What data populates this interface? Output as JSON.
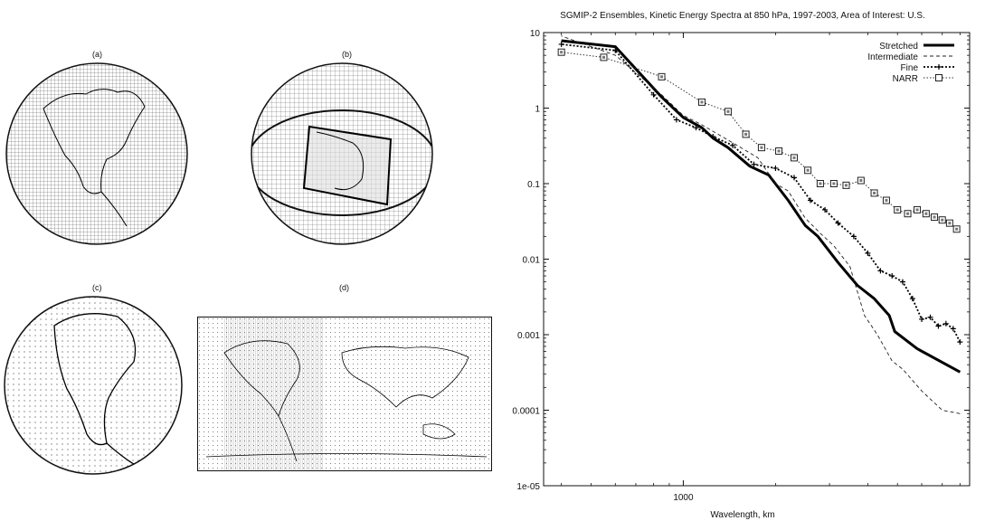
{
  "panels": {
    "a": {
      "label": "(a)"
    },
    "b": {
      "label": "(b)"
    },
    "c": {
      "label": "(c)"
    },
    "d": {
      "label": "(d)"
    }
  },
  "chart_data": {
    "type": "line",
    "title": "SGMIP-2 Ensembles, Kinetic Energy Spectra at 850 hPa, 1997-2003, Area of Interest: U.S.",
    "xlabel": "Wavelength, km",
    "ylabel": "",
    "x_scale": "log",
    "y_scale": "log",
    "x_tick_labels": [
      {
        "value": 1000,
        "label": "1000"
      }
    ],
    "y_tick_labels": [
      {
        "value": 10,
        "label": "10"
      },
      {
        "value": 1,
        "label": "1"
      },
      {
        "value": 0.1,
        "label": "0.1"
      },
      {
        "value": 0.01,
        "label": "0.01"
      },
      {
        "value": 0.001,
        "label": "0.001"
      },
      {
        "value": 0.0001,
        "label": "0.0001"
      },
      {
        "value": 1e-05,
        "label": "1e-05"
      }
    ],
    "legend_position": "top-right",
    "grid": false,
    "series": [
      {
        "name": "Stretched",
        "style": "solid-thick",
        "x": [
          8000,
          5800,
          4900,
          4700,
          4200,
          3700,
          3200,
          2750,
          2500,
          2200,
          1900,
          1650,
          1400,
          1250,
          1150,
          1000,
          850,
          600,
          400
        ],
        "y": [
          0.00032,
          0.00065,
          0.0011,
          0.0018,
          0.003,
          0.0045,
          0.009,
          0.02,
          0.028,
          0.06,
          0.13,
          0.17,
          0.3,
          0.4,
          0.55,
          0.75,
          1.4,
          6.5,
          7.8
        ]
      },
      {
        "name": "Intermediate",
        "style": "dashed-thin",
        "x": [
          8000,
          7000,
          6000,
          5200,
          4800,
          4300,
          3900,
          3500,
          3100,
          2800,
          2500,
          2200,
          2000,
          1750,
          1500,
          1300,
          1150,
          1000,
          850,
          600,
          400
        ],
        "y": [
          9e-05,
          0.0001,
          0.00018,
          0.00035,
          0.00045,
          0.001,
          0.0018,
          0.008,
          0.015,
          0.022,
          0.035,
          0.08,
          0.1,
          0.22,
          0.32,
          0.45,
          0.6,
          0.8,
          1.5,
          5,
          9
        ]
      },
      {
        "name": "Fine",
        "style": "dotted-plus",
        "x": [
          8000,
          7600,
          7200,
          6800,
          6400,
          6000,
          5600,
          5200,
          4800,
          4400,
          4000,
          3600,
          3200,
          2900,
          2600,
          2300,
          2000,
          1700,
          1450,
          1250,
          1100,
          950,
          800,
          600,
          400
        ],
        "y": [
          0.0008,
          0.0012,
          0.0014,
          0.0013,
          0.0017,
          0.0016,
          0.003,
          0.005,
          0.006,
          0.007,
          0.012,
          0.02,
          0.03,
          0.045,
          0.06,
          0.12,
          0.16,
          0.18,
          0.32,
          0.42,
          0.55,
          0.7,
          1.5,
          5.8,
          7
        ]
      },
      {
        "name": "NARR",
        "style": "dotted-square",
        "x": [
          7800,
          7400,
          7000,
          6600,
          6200,
          5800,
          5400,
          5000,
          4600,
          4200,
          3800,
          3400,
          3100,
          2800,
          2550,
          2300,
          2050,
          1800,
          1600,
          1400,
          1150,
          850,
          550,
          400
        ],
        "y": [
          0.025,
          0.03,
          0.033,
          0.036,
          0.04,
          0.045,
          0.04,
          0.045,
          0.06,
          0.075,
          0.11,
          0.095,
          0.1,
          0.1,
          0.15,
          0.22,
          0.27,
          0.3,
          0.45,
          0.9,
          1.2,
          2.6,
          4.7,
          5.5
        ]
      }
    ]
  }
}
